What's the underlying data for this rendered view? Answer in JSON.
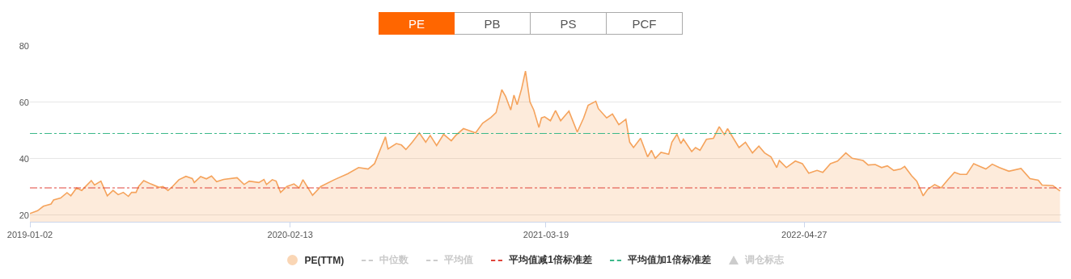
{
  "chart_data": {
    "type": "area",
    "annotations": [
      "PE",
      "PB",
      "PS",
      "PCF"
    ],
    "x": [
      "2019-01-02",
      "2019-01-14",
      "2019-01-23",
      "2019-02-04",
      "2019-02-08",
      "2019-02-19",
      "2019-03-01",
      "2019-03-07",
      "2019-03-16",
      "2019-03-24",
      "2019-04-08",
      "2019-04-13",
      "2019-04-23",
      "2019-05-03",
      "2019-05-12",
      "2019-05-20",
      "2019-05-28",
      "2019-06-05",
      "2019-06-10",
      "2019-06-17",
      "2019-06-21",
      "2019-06-29",
      "2019-07-10",
      "2019-07-23",
      "2019-07-29",
      "2019-08-06",
      "2019-08-13",
      "2019-08-23",
      "2019-09-03",
      "2019-09-13",
      "2019-09-16",
      "2019-09-26",
      "2019-10-05",
      "2019-10-13",
      "2019-10-21",
      "2019-11-01",
      "2019-11-22",
      "2019-12-03",
      "2019-12-11",
      "2019-12-26",
      "2020-01-03",
      "2020-01-07",
      "2020-01-16",
      "2020-01-22",
      "2020-01-29",
      "2020-02-08",
      "2020-02-19",
      "2020-02-27",
      "2020-03-04",
      "2020-03-19",
      "2020-04-01",
      "2020-04-22",
      "2020-05-13",
      "2020-05-30",
      "2020-06-14",
      "2020-06-24",
      "2020-07-05",
      "2020-07-11",
      "2020-07-15",
      "2020-07-28",
      "2020-08-05",
      "2020-08-12",
      "2020-08-22",
      "2020-09-02",
      "2020-09-12",
      "2020-09-19",
      "2020-09-29",
      "2020-10-10",
      "2020-10-22",
      "2020-10-29",
      "2020-11-10",
      "2020-11-29",
      "2020-12-10",
      "2020-12-23",
      "2020-12-31",
      "2021-01-09",
      "2021-01-15",
      "2021-01-23",
      "2021-01-28",
      "2021-02-02",
      "2021-02-09",
      "2021-02-15",
      "2021-02-22",
      "2021-02-28",
      "2021-03-08",
      "2021-03-12",
      "2021-03-17",
      "2021-03-26",
      "2021-04-03",
      "2021-04-11",
      "2021-04-24",
      "2021-05-07",
      "2021-05-17",
      "2021-05-24",
      "2021-06-05",
      "2021-06-09",
      "2021-06-22",
      "2021-07-01",
      "2021-07-11",
      "2021-07-22",
      "2021-07-28",
      "2021-08-03",
      "2021-08-14",
      "2021-08-25",
      "2021-08-31",
      "2021-09-06",
      "2021-09-15",
      "2021-09-27",
      "2021-10-02",
      "2021-10-10",
      "2021-10-16",
      "2021-10-20",
      "2021-11-02",
      "2021-11-08",
      "2021-11-15",
      "2021-11-25",
      "2021-12-06",
      "2021-12-15",
      "2021-12-23",
      "2021-12-28",
      "2022-01-15",
      "2022-01-25",
      "2022-02-05",
      "2022-02-15",
      "2022-02-24",
      "2022-03-06",
      "2022-03-15",
      "2022-03-19",
      "2022-03-30",
      "2022-04-13",
      "2022-04-24",
      "2022-05-04",
      "2022-05-17",
      "2022-05-26",
      "2022-06-07",
      "2022-06-18",
      "2022-07-01",
      "2022-07-11",
      "2022-07-28",
      "2022-08-05",
      "2022-08-16",
      "2022-08-26",
      "2022-09-04",
      "2022-09-14",
      "2022-09-25",
      "2022-10-01",
      "2022-10-12",
      "2022-10-20",
      "2022-10-30",
      "2022-11-06",
      "2022-11-17",
      "2022-11-27",
      "2022-12-08",
      "2022-12-18",
      "2022-12-27",
      "2023-01-06",
      "2023-01-17",
      "2023-01-27",
      "2023-02-05",
      "2023-02-15",
      "2023-02-26",
      "2023-03-13",
      "2023-04-01",
      "2023-04-15",
      "2023-04-28",
      "2023-05-04",
      "2023-05-21",
      "2023-06-01"
    ],
    "series": [
      {
        "name": "PE(TTM)",
        "color": "#f5a35c",
        "values": [
          20.6,
          21.6,
          23.2,
          24.0,
          25.4,
          26.1,
          28.0,
          26.9,
          29.7,
          28.8,
          32.3,
          30.7,
          32.1,
          26.9,
          28.8,
          27.3,
          28.1,
          26.7,
          28.1,
          28.1,
          30.2,
          32.3,
          31.1,
          29.9,
          30.2,
          28.8,
          30.2,
          32.6,
          33.8,
          33.0,
          31.6,
          33.7,
          32.9,
          33.9,
          31.9,
          32.7,
          33.3,
          30.9,
          32.1,
          31.6,
          32.7,
          30.9,
          32.6,
          32.1,
          28.1,
          30.2,
          31.1,
          29.7,
          32.6,
          27.1,
          30.2,
          32.6,
          34.7,
          36.9,
          36.4,
          38.3,
          44.5,
          47.8,
          43.5,
          45.4,
          44.9,
          43.3,
          45.9,
          49.2,
          45.9,
          48.3,
          44.7,
          48.7,
          46.4,
          48.3,
          50.7,
          49.2,
          52.6,
          54.7,
          56.4,
          64.5,
          62.1,
          57.3,
          62.6,
          59.2,
          64.9,
          71.1,
          60.2,
          57.3,
          51.1,
          54.5,
          54.9,
          53.5,
          57.1,
          53.5,
          56.9,
          49.5,
          54.5,
          59.0,
          60.4,
          57.8,
          54.5,
          55.9,
          52.1,
          54.0,
          45.9,
          44.0,
          47.3,
          40.7,
          43.0,
          40.2,
          42.3,
          41.6,
          45.9,
          48.7,
          45.4,
          47.0,
          42.6,
          44.0,
          43.0,
          46.9,
          47.3,
          51.4,
          48.6,
          50.7,
          44.0,
          45.9,
          42.1,
          44.5,
          42.1,
          40.7,
          36.9,
          39.4,
          36.9,
          39.2,
          38.3,
          34.9,
          35.9,
          35.2,
          38.3,
          39.2,
          42.1,
          40.2,
          39.4,
          37.8,
          38.0,
          36.9,
          37.5,
          35.9,
          36.4,
          37.3,
          34.0,
          32.1,
          26.9,
          29.2,
          30.9,
          29.7,
          32.7,
          35.2,
          34.5,
          34.5,
          38.3,
          37.3,
          36.4,
          38.1,
          36.9,
          35.6,
          36.6,
          33.0,
          32.4,
          30.7,
          30.5,
          28.6
        ]
      },
      {
        "name": "中位数",
        "type": "line",
        "line_style": "dashed",
        "color": "#cccccc",
        "values": [
          null,
          null,
          null,
          null,
          null,
          null,
          null,
          null,
          null,
          null,
          null,
          null,
          null,
          null,
          null,
          null,
          null,
          null,
          null,
          null,
          null,
          null,
          null,
          null,
          null,
          null,
          null,
          null,
          null,
          null,
          null,
          null,
          null,
          null,
          null,
          null,
          null,
          null,
          null,
          null,
          null,
          null,
          null,
          null,
          null,
          null,
          null,
          null,
          null,
          null,
          null,
          null,
          null,
          null,
          null,
          null,
          null,
          null,
          null,
          null,
          null,
          null,
          null,
          null,
          null,
          null,
          null,
          null,
          null,
          null,
          null,
          null,
          null,
          null,
          null,
          null,
          null,
          null,
          null,
          null,
          null,
          null,
          null,
          null,
          null,
          null,
          null,
          null,
          null,
          null,
          null,
          null,
          null,
          null,
          null,
          null,
          null,
          null,
          null,
          null,
          null,
          null,
          null,
          null,
          null,
          null,
          null,
          null,
          null,
          null,
          null,
          null,
          null,
          null,
          null,
          null,
          null,
          null,
          null,
          null,
          null,
          null,
          null,
          null,
          null,
          null,
          null,
          null,
          null,
          null,
          null,
          null,
          null,
          null,
          null,
          null,
          null,
          null,
          null,
          null,
          null,
          null,
          null,
          null,
          null,
          null,
          null,
          null,
          null,
          null,
          null,
          null,
          null,
          null,
          null,
          null,
          null,
          null,
          null,
          null,
          null,
          null,
          null,
          null,
          null,
          null,
          null,
          null
        ]
      },
      {
        "name": "平均值",
        "type": "line",
        "line_style": "dashed",
        "color": "#cccccc",
        "values": [
          null,
          null,
          null,
          null,
          null,
          null,
          null,
          null,
          null,
          null,
          null,
          null,
          null,
          null,
          null,
          null,
          null,
          null,
          null,
          null,
          null,
          null,
          null,
          null,
          null,
          null,
          null,
          null,
          null,
          null,
          null,
          null,
          null,
          null,
          null,
          null,
          null,
          null,
          null,
          null,
          null,
          null,
          null,
          null,
          null,
          null,
          null,
          null,
          null,
          null,
          null,
          null,
          null,
          null,
          null,
          null,
          null,
          null,
          null,
          null,
          null,
          null,
          null,
          null,
          null,
          null,
          null,
          null,
          null,
          null,
          null,
          null,
          null,
          null,
          null,
          null,
          null,
          null,
          null,
          null,
          null,
          null,
          null,
          null,
          null,
          null,
          null,
          null,
          null,
          null,
          null,
          null,
          null,
          null,
          null,
          null,
          null,
          null,
          null,
          null,
          null,
          null,
          null,
          null,
          null,
          null,
          null,
          null,
          null,
          null,
          null,
          null,
          null,
          null,
          null,
          null,
          null,
          null,
          null,
          null,
          null,
          null,
          null,
          null,
          null,
          null,
          null,
          null,
          null,
          null,
          null,
          null,
          null,
          null,
          null,
          null,
          null,
          null,
          null,
          null,
          null,
          null,
          null,
          null,
          null,
          null,
          null,
          null,
          null,
          null,
          null,
          null,
          null,
          null,
          null,
          null,
          null,
          null,
          null,
          null,
          null,
          null,
          null,
          null,
          null,
          null,
          null,
          null
        ]
      },
      {
        "name": "调仓标志",
        "type": "scatter",
        "marker": "triangle",
        "color": "#cccccc",
        "values": [
          null,
          null,
          null,
          null,
          null,
          null,
          null,
          null,
          null,
          null,
          null,
          null,
          null,
          null,
          null,
          null,
          null,
          null,
          null,
          null,
          null,
          null,
          null,
          null,
          null,
          null,
          null,
          null,
          null,
          null,
          null,
          null,
          null,
          null,
          null,
          null,
          null,
          null,
          null,
          null,
          null,
          null,
          null,
          null,
          null,
          null,
          null,
          null,
          null,
          null,
          null,
          null,
          null,
          null,
          null,
          null,
          null,
          null,
          null,
          null,
          null,
          null,
          null,
          null,
          null,
          null,
          null,
          null,
          null,
          null,
          null,
          null,
          null,
          null,
          null,
          null,
          null,
          null,
          null,
          null,
          null,
          null,
          null,
          null,
          null,
          null,
          null,
          null,
          null,
          null,
          null,
          null,
          null,
          null,
          null,
          null,
          null,
          null,
          null,
          null,
          null,
          null,
          null,
          null,
          null,
          null,
          null,
          null,
          null,
          null,
          null,
          null,
          null,
          null,
          null,
          null,
          null,
          null,
          null,
          null,
          null,
          null,
          null,
          null,
          null,
          null,
          null,
          null,
          null,
          null,
          null,
          null,
          null,
          null,
          null,
          null,
          null,
          null,
          null,
          null,
          null,
          null,
          null,
          null,
          null,
          null,
          null,
          null,
          null,
          null,
          null,
          null,
          null,
          null,
          null,
          null,
          null,
          null,
          null,
          null,
          null,
          null,
          null,
          null,
          null,
          null,
          null,
          null
        ]
      }
    ],
    "ref_lines": [
      {
        "axis": "y",
        "value": 29.7,
        "label": "平均值减1倍标准差",
        "color": "#e0443a",
        "line_style": "dashdot"
      },
      {
        "axis": "y",
        "value": 49.0,
        "label": "平均值加1倍标准差",
        "color": "#3cb88a",
        "line_style": "dashdot"
      }
    ],
    "xlim": [
      "2019-01-02",
      "2023-06-03"
    ],
    "xticks": [
      "2019-01-02",
      "2020-02-13",
      "2021-03-19",
      "2022-04-27"
    ],
    "ylim": [
      17.7,
      80
    ],
    "yticks": [
      20,
      40,
      60,
      80
    ],
    "grid": "y",
    "legend": "bottom",
    "marker": "none"
  }
}
